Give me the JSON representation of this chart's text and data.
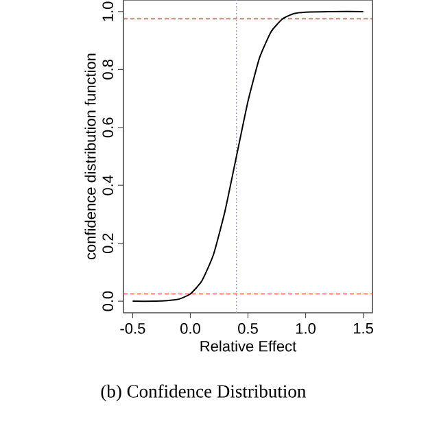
{
  "chart_data": {
    "type": "line",
    "xlabel": "Relative Effect",
    "ylabel": "confidence distribution function",
    "annotations": [
      "(b) Confidence Distribution"
    ],
    "x": [
      -0.5,
      -0.3,
      -0.2,
      -0.1,
      0,
      0.1,
      0.2,
      0.3,
      0.4,
      0.5,
      0.6,
      0.7,
      0.8,
      0.9,
      1.0,
      1.2,
      1.5
    ],
    "series": [
      {
        "color": "#000000",
        "values": [
          0,
          0,
          0.002,
          0.007,
          0.025,
          0.07,
          0.16,
          0.31,
          0.5,
          0.69,
          0.84,
          0.93,
          0.975,
          0.993,
          0.998,
          1,
          1
        ]
      }
    ],
    "xlim": [
      -0.58,
      1.58
    ],
    "ylim": [
      -0.04,
      1.04
    ],
    "xticks": [
      -0.5,
      {
        "value": 0,
        "label": "0.0"
      },
      0.5,
      {
        "value": 1,
        "label": "1.0"
      },
      1.5
    ],
    "yticks": [
      {
        "value": 0,
        "label": "0.0"
      },
      0.2,
      0.4,
      0.6,
      0.8,
      {
        "value": 1,
        "label": "1.0"
      }
    ],
    "ref_lines": [
      {
        "axis": "y",
        "value": 0.025,
        "color": "#e03c3c",
        "line_style": "dashed"
      },
      {
        "axis": "y",
        "value": 0.975,
        "color": "#e03c3c",
        "line_style": "dashed"
      },
      {
        "axis": "x",
        "value": 0.4,
        "color": "#9999dd",
        "line_style": "dotted"
      }
    ],
    "grid": false,
    "line_style": "solid"
  }
}
